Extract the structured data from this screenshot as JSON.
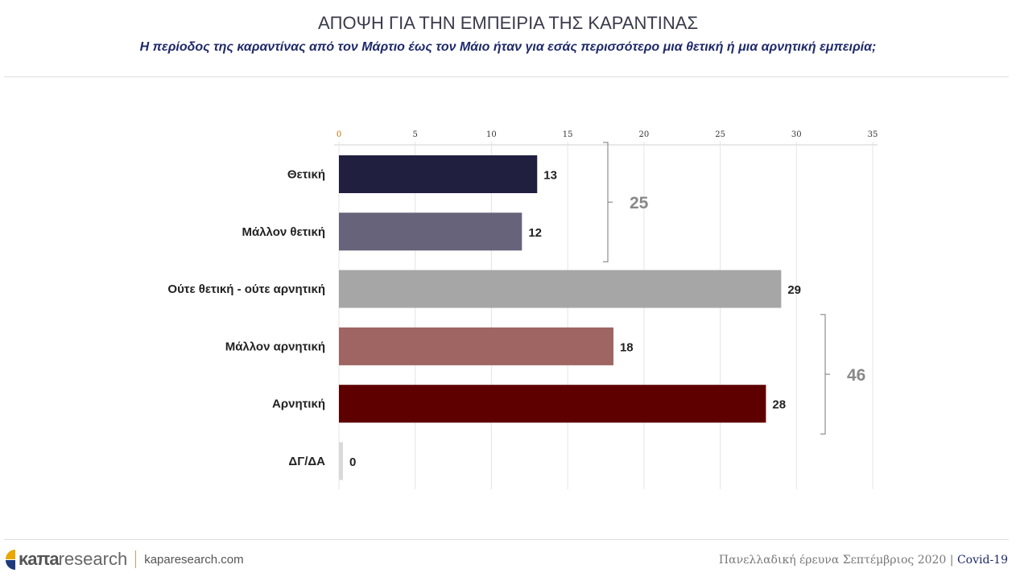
{
  "header": {
    "title": "ΑΠΟΨΗ ΓΙΑ ΤΗΝ ΕΜΠΕΙΡΙΑ ΤΗΣ ΚΑΡΑΝΤΙΝΑΣ",
    "subtitle": "Η περίοδος της καραντίνας από τον Μάρτιο έως τον Μάιο ήταν για εσάς περισσότερο μια θετική ή μια αρνητική εμπειρία;"
  },
  "chart_data": {
    "type": "bar",
    "orientation": "horizontal",
    "categories": [
      "Θετική",
      "Μάλλον θετική",
      "Ούτε θετική - ούτε αρνητική",
      "Μάλλον αρνητική",
      "Αρνητική",
      "ΔΓ/ΔΑ"
    ],
    "values": [
      13,
      12,
      29,
      18,
      28,
      0
    ],
    "colors": [
      "#201f40",
      "#66637a",
      "#a6a6a6",
      "#9e6563",
      "#5f0000",
      "#d9d9d9"
    ],
    "xlim": [
      0,
      35
    ],
    "xticks": [
      0,
      5,
      10,
      15,
      20,
      25,
      30,
      35
    ],
    "grid": true,
    "annotations": [
      {
        "label": "25",
        "from": 0,
        "to": 1
      },
      {
        "label": "46",
        "from": 3,
        "to": 4
      }
    ]
  },
  "footer": {
    "brand_bold": "κaπa",
    "brand_light": "research",
    "site": "kaparesearch.com",
    "survey": "Πανελλαδική έρευνα Σεπτέμβριος 2020",
    "separator": "|",
    "topic": "Covid-19"
  }
}
